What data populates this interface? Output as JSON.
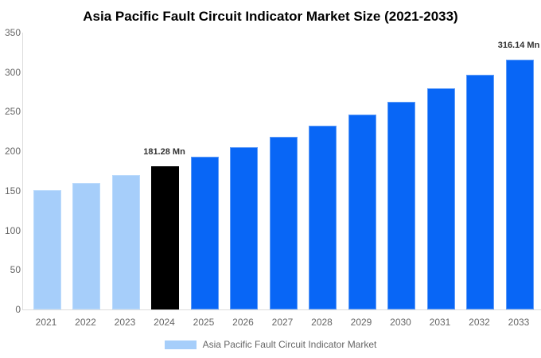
{
  "title": "Asia Pacific Fault Circuit Indicator Market Size (2021-2033)",
  "legend": {
    "label": "Asia Pacific Fault Circuit Indicator Market",
    "swatch_color": "#A6CEFA"
  },
  "colors": {
    "historical_bar": "#A6CEFA",
    "historical_border": "#BCDBFC",
    "base_year_bar": "#000000",
    "base_year_border": "#000000",
    "forecast_bar": "#0866F6",
    "forecast_border": "#5D9BF8",
    "axis_line": "#dcdcdc",
    "tick_text": "#666666",
    "title_text": "#000000",
    "data_label_text": "#333333"
  },
  "chart_data": {
    "type": "bar",
    "title": "Asia Pacific Fault Circuit Indicator Market Size (2021-2033)",
    "xlabel": "",
    "ylabel": "",
    "unit": "Mn",
    "ylim": [
      0,
      350
    ],
    "yticks": [
      0,
      50,
      100,
      150,
      200,
      250,
      300,
      350
    ],
    "grid": false,
    "legend_position": "bottom",
    "categories": [
      "2021",
      "2022",
      "2023",
      "2024",
      "2025",
      "2026",
      "2027",
      "2028",
      "2029",
      "2030",
      "2031",
      "2032",
      "2033"
    ],
    "values": [
      150.63,
      160.23,
      170.44,
      181.28,
      192.83,
      205.11,
      218.18,
      232.08,
      246.86,
      262.58,
      279.3,
      297.1,
      316.14
    ],
    "bar_colors": [
      "#A6CEFA",
      "#A6CEFA",
      "#A6CEFA",
      "#000000",
      "#0866F6",
      "#0866F6",
      "#0866F6",
      "#0866F6",
      "#0866F6",
      "#0866F6",
      "#0866F6",
      "#0866F6",
      "#0866F6"
    ],
    "bar_border_colors": [
      "#BCDBFC",
      "#BCDBFC",
      "#BCDBFC",
      "#000000",
      "#5D9BF8",
      "#5D9BF8",
      "#5D9BF8",
      "#5D9BF8",
      "#5D9BF8",
      "#5D9BF8",
      "#5D9BF8",
      "#5D9BF8",
      "#5D9BF8"
    ],
    "data_labels": [
      {
        "category": "2024",
        "text": "181.28 Mn"
      },
      {
        "category": "2033",
        "text": "316.14 Mn"
      }
    ]
  }
}
